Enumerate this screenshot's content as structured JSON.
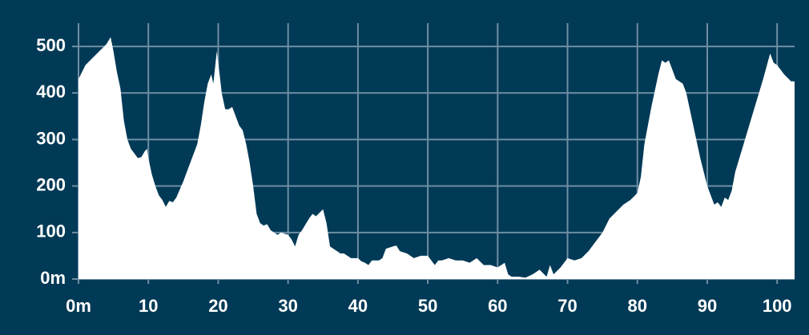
{
  "chart_data": {
    "type": "area",
    "color": "#ffffff",
    "grid": true,
    "x": [
      0,
      0.5,
      1,
      2,
      3,
      4,
      4.6,
      5,
      5.5,
      6,
      6.5,
      7,
      7.5,
      8.5,
      9,
      9.5,
      9.8,
      10,
      10.5,
      11,
      11.5,
      12,
      12.5,
      13,
      13.5,
      14,
      15,
      16,
      17,
      17.5,
      18,
      18.5,
      19,
      19.3,
      19.8,
      20.2,
      20.5,
      21,
      21.5,
      22,
      22.5,
      23,
      23.5,
      24,
      24.5,
      25,
      25.5,
      26,
      26.5,
      27,
      27.5,
      28,
      28.5,
      29,
      30,
      30.5,
      31,
      31.5,
      32,
      33,
      33.5,
      34,
      35,
      35.5,
      36,
      37,
      37.5,
      38,
      39,
      40,
      40.5,
      41,
      41.5,
      42,
      43,
      43.5,
      44,
      45,
      45.5,
      46,
      47,
      48,
      49,
      50,
      50.5,
      51,
      51.5,
      52,
      53,
      54,
      55,
      56,
      57,
      58,
      59,
      60,
      61,
      61.5,
      62,
      63,
      64,
      65,
      66,
      67,
      67.5,
      68,
      69,
      70,
      71,
      72,
      73,
      74,
      75,
      76,
      77,
      78,
      79,
      80,
      80.5,
      81,
      82,
      83,
      83.5,
      84,
      84.5,
      85,
      85.5,
      86,
      86.5,
      87,
      88,
      89,
      90,
      90.5,
      91,
      91.5,
      92,
      92.5,
      93,
      93.5,
      94,
      95,
      96,
      97,
      98,
      99,
      99.5,
      100,
      101,
      102,
      102.5
    ],
    "values": [
      430,
      445,
      460,
      475,
      490,
      505,
      520,
      490,
      445,
      410,
      340,
      300,
      280,
      260,
      262,
      275,
      280,
      260,
      225,
      200,
      180,
      170,
      155,
      168,
      165,
      175,
      210,
      250,
      290,
      330,
      380,
      420,
      440,
      420,
      490,
      440,
      400,
      365,
      365,
      370,
      350,
      330,
      320,
      290,
      250,
      200,
      140,
      120,
      115,
      118,
      105,
      100,
      95,
      100,
      95,
      85,
      70,
      95,
      105,
      130,
      140,
      135,
      150,
      120,
      70,
      60,
      55,
      55,
      45,
      45,
      38,
      35,
      30,
      40,
      40,
      45,
      65,
      70,
      72,
      60,
      55,
      45,
      50,
      50,
      40,
      30,
      40,
      40,
      45,
      40,
      40,
      35,
      45,
      30,
      30,
      25,
      35,
      10,
      5,
      5,
      3,
      10,
      20,
      5,
      30,
      10,
      25,
      45,
      40,
      45,
      60,
      80,
      100,
      130,
      145,
      160,
      170,
      185,
      220,
      290,
      370,
      440,
      470,
      465,
      470,
      450,
      430,
      425,
      420,
      400,
      330,
      260,
      200,
      180,
      160,
      165,
      155,
      175,
      170,
      190,
      230,
      280,
      330,
      380,
      430,
      485,
      465,
      460,
      440,
      425,
      425
    ],
    "xlim": [
      0,
      102.5
    ],
    "ylim": [
      0,
      550
    ],
    "xticks": [
      {
        "value": 0,
        "label": "0m"
      },
      10,
      20,
      30,
      40,
      50,
      60,
      70,
      80,
      90,
      100
    ],
    "yticks": [
      {
        "value": 0,
        "label": "0m"
      },
      100,
      200,
      300,
      400,
      500
    ]
  }
}
